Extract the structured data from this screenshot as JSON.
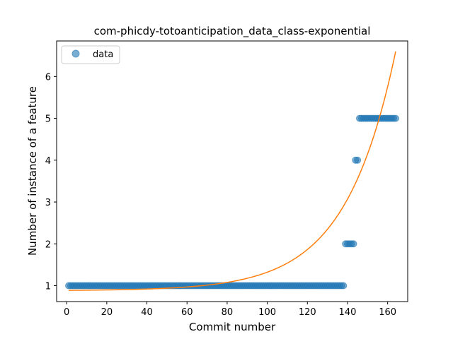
{
  "chart_data": {
    "type": "scatter",
    "title": "com-phicdy-totoanticipation_data_class-exponential",
    "xlabel": "Commit number",
    "ylabel": "Number of instance of a feature",
    "xlim": [
      -5,
      170
    ],
    "ylim": [
      0.62,
      6.85
    ],
    "xticks": [
      0,
      20,
      40,
      60,
      80,
      100,
      120,
      140,
      160
    ],
    "yticks": [
      1,
      2,
      3,
      4,
      5,
      6
    ],
    "grid": false,
    "legend": {
      "position": "top-left",
      "entries": [
        "data"
      ]
    },
    "series": [
      {
        "name": "data",
        "kind": "scatter",
        "color": "#1f77b4",
        "segments": [
          {
            "x_from": 1,
            "x_to": 138,
            "y": 1
          },
          {
            "x_from": 139,
            "x_to": 143,
            "y": 2
          },
          {
            "x_from": 144,
            "x_to": 145,
            "y": 4
          },
          {
            "x_from": 146,
            "x_to": 164,
            "y": 5
          }
        ]
      },
      {
        "kind": "line",
        "color": "#ff7f0e",
        "model": "exponential",
        "params": {
          "a": 0.0081,
          "b": 0.04,
          "c": 0.88
        },
        "x_range": [
          1,
          164
        ]
      }
    ]
  }
}
